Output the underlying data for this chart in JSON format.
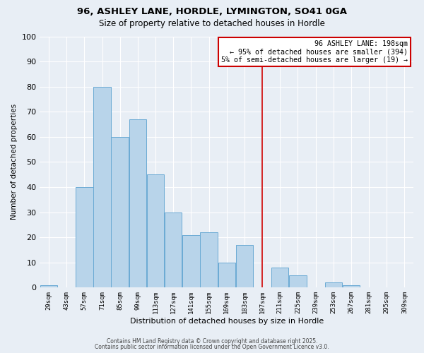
{
  "title": "96, ASHLEY LANE, HORDLE, LYMINGTON, SO41 0GA",
  "subtitle": "Size of property relative to detached houses in Hordle",
  "xlabel": "Distribution of detached houses by size in Hordle",
  "ylabel": "Number of detached properties",
  "bar_labels": [
    "29sqm",
    "43sqm",
    "57sqm",
    "71sqm",
    "85sqm",
    "99sqm",
    "113sqm",
    "127sqm",
    "141sqm",
    "155sqm",
    "169sqm",
    "183sqm",
    "197sqm",
    "211sqm",
    "225sqm",
    "239sqm",
    "253sqm",
    "267sqm",
    "281sqm",
    "295sqm",
    "309sqm"
  ],
  "bar_values": [
    1,
    0,
    40,
    80,
    60,
    67,
    45,
    30,
    21,
    22,
    10,
    17,
    0,
    8,
    5,
    0,
    2,
    1,
    0,
    0,
    0
  ],
  "bar_color": "#b8d4ea",
  "bar_edge_color": "#6aaad4",
  "vline_color": "#cc0000",
  "annotation_title": "96 ASHLEY LANE: 198sqm",
  "annotation_line1": "← 95% of detached houses are smaller (394)",
  "annotation_line2": "5% of semi-detached houses are larger (19) →",
  "annotation_box_color": "#cc0000",
  "ylim": [
    0,
    100
  ],
  "yticks": [
    0,
    10,
    20,
    30,
    40,
    50,
    60,
    70,
    80,
    90,
    100
  ],
  "background_color": "#e8eef5",
  "grid_color": "#ffffff",
  "footnote1": "Contains HM Land Registry data © Crown copyright and database right 2025.",
  "footnote2": "Contains public sector information licensed under the Open Government Licence v3.0."
}
